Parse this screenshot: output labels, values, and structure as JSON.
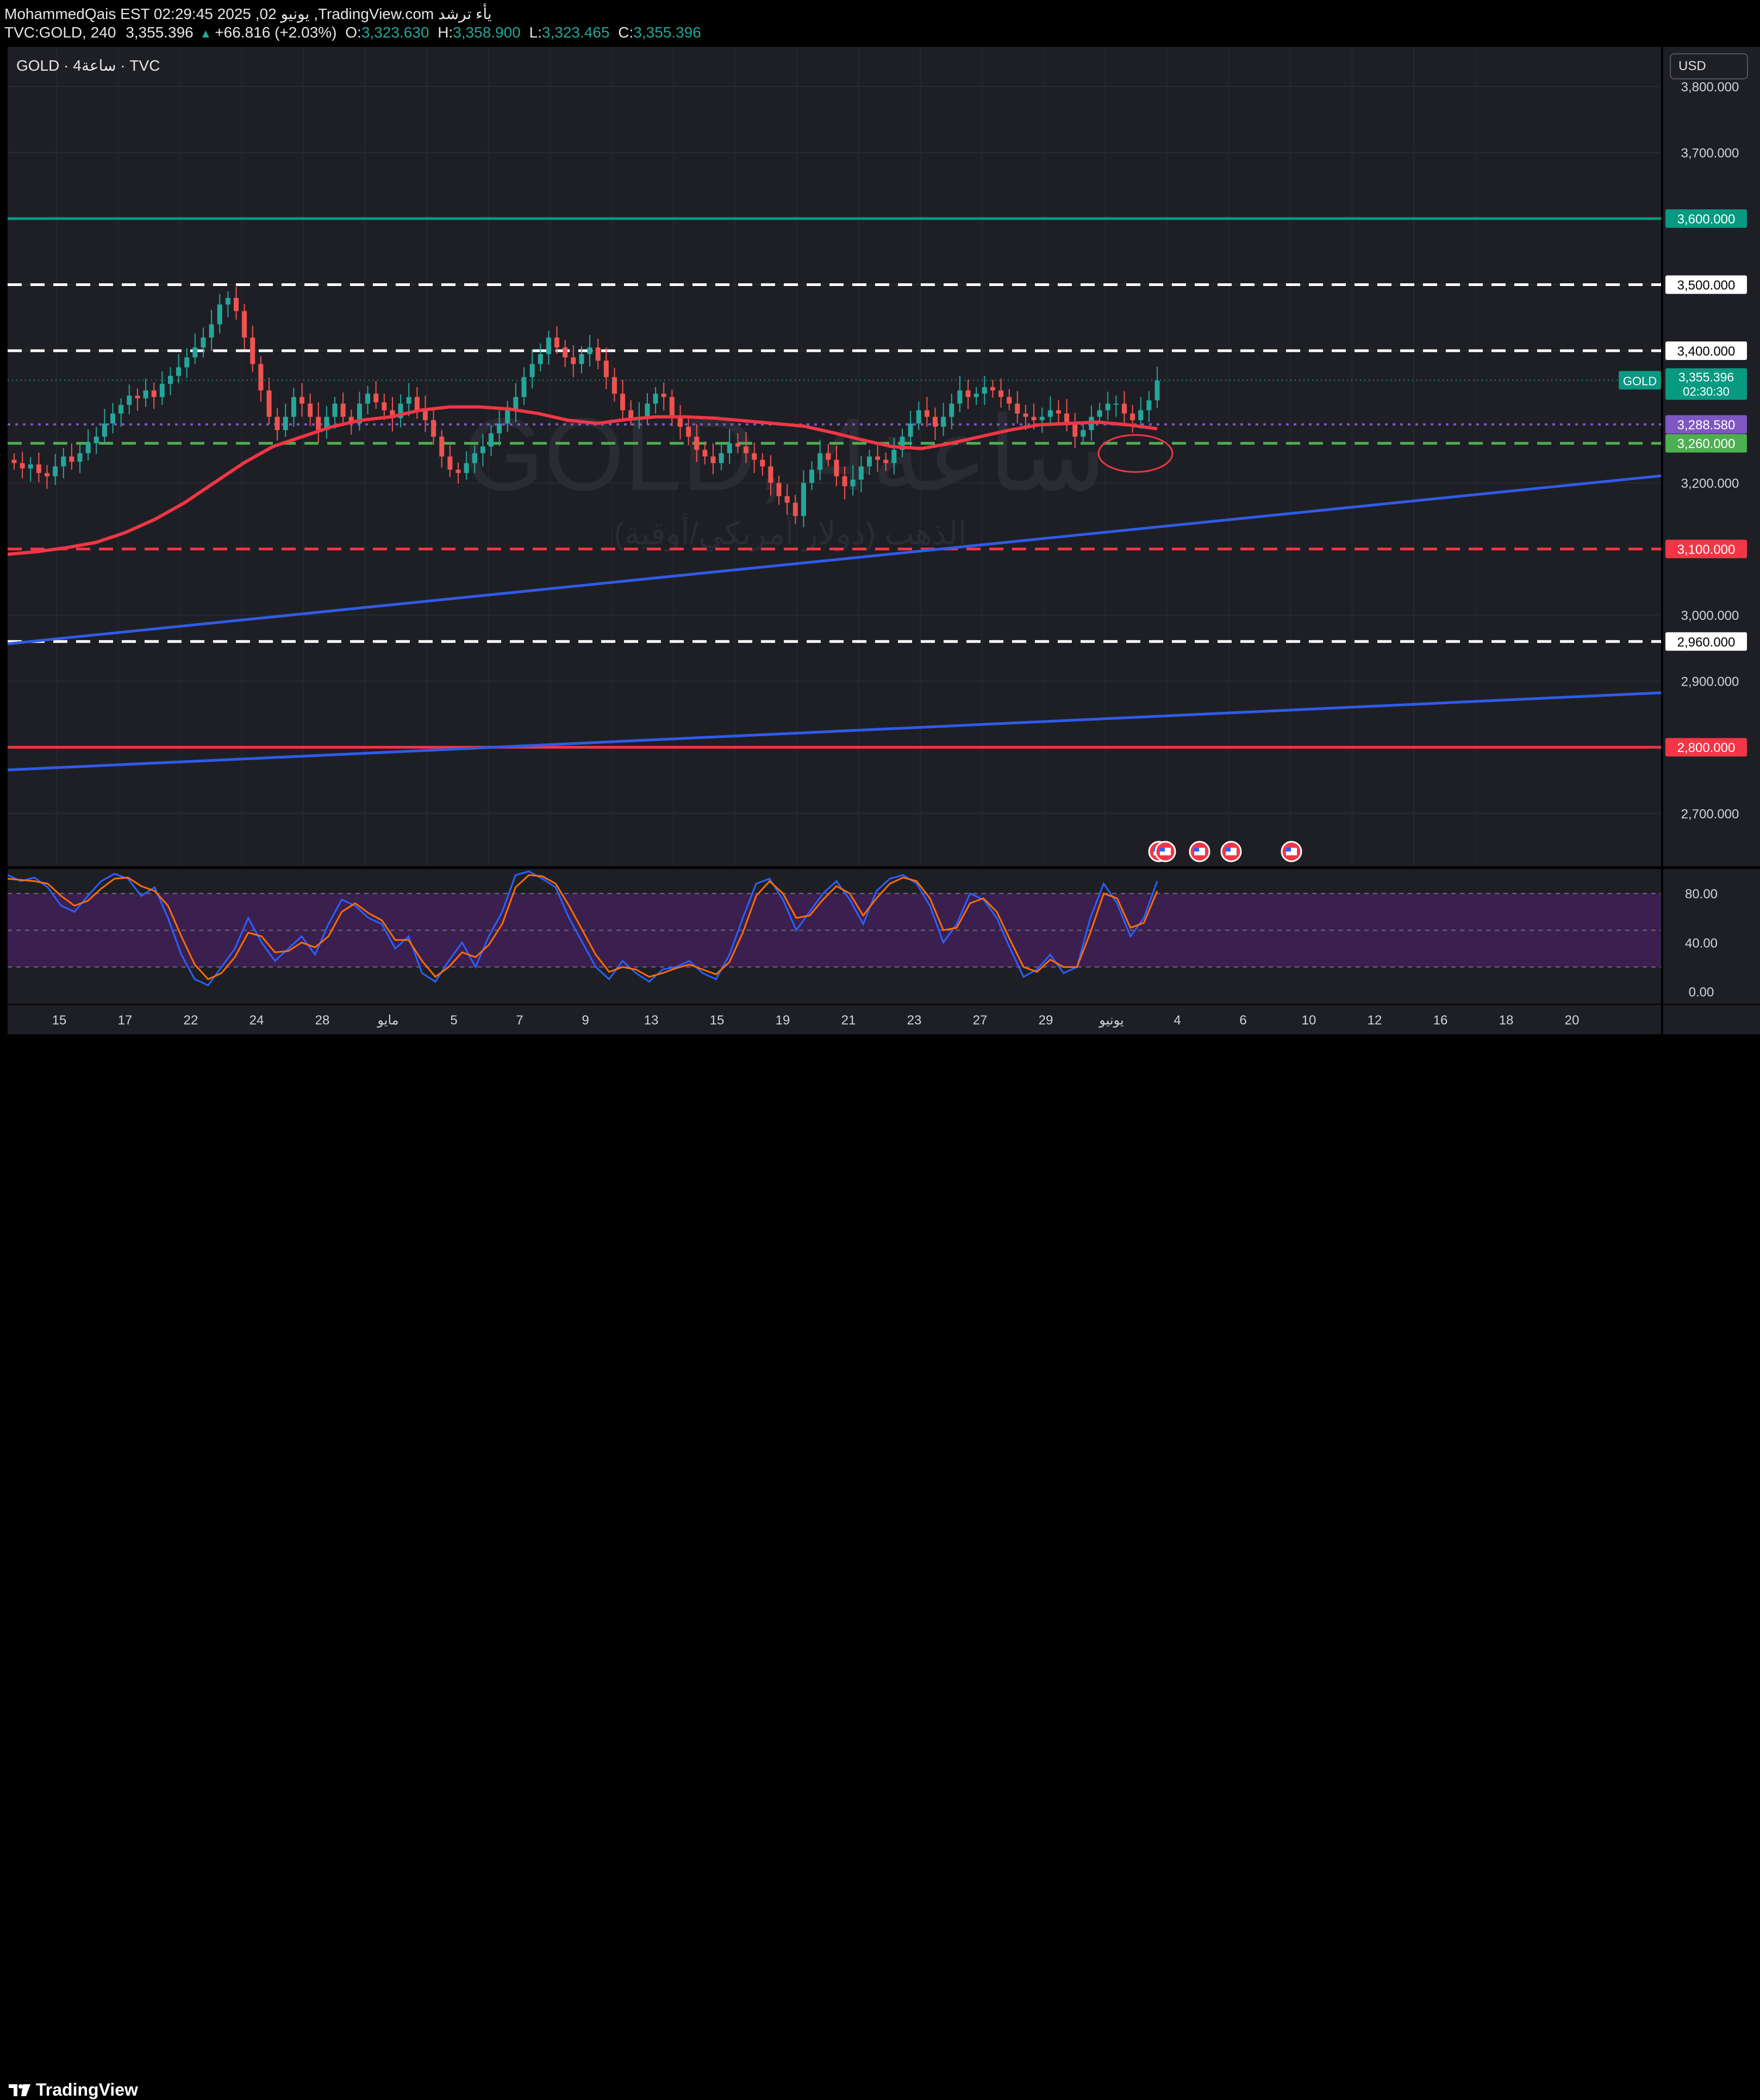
{
  "header": {
    "line1": "MohammedQais EST 02:29:45 2025 ,02 يونيو ,TradingView.com يأء ترشد",
    "symbol": "TVC:GOLD, 240",
    "last": "3,355.396",
    "change": "+66.816 (+2.03%)",
    "o_label": "O:",
    "o_value": "3,323.630",
    "h_label": "H:",
    "h_value": "3,358.900",
    "l_label": "L:",
    "l_value": "3,323.465",
    "c_label": "C:",
    "c_value": "3,355.396"
  },
  "legend": {
    "text": "GOLD · 4ساعة · TVC"
  },
  "currency": "USD",
  "watermark": {
    "title": "GOLD, 4ساعة",
    "subtitle": "الذهب (دولار أمريكي/أوقية)"
  },
  "colors": {
    "background": "#1e1f25",
    "up": "#26a69a",
    "down": "#ef5350",
    "ma": "#f23645",
    "trend": "#2f5bea",
    "resistance_green": "#089981",
    "support_red": "#f23645",
    "purple": "#7e57c2",
    "stoch_k": "#2962ff",
    "stoch_d": "#ff6d00"
  },
  "price_axis": {
    "range": [
      2620,
      3860
    ],
    "ticks": [
      "3,800.000",
      "3,700.000",
      "3,500.000",
      "3,400.000",
      "3,200.000",
      "3,000.000",
      "2,900.000",
      "2,700.000"
    ],
    "tick_values": [
      3800,
      3700,
      3500,
      3400,
      3200,
      3000,
      2900,
      2700
    ]
  },
  "levels": [
    {
      "value": 3600,
      "label": "3,600.000",
      "style": "solid",
      "color": "#089981"
    },
    {
      "value": 3500,
      "label": "3,500.000",
      "style": "dashed",
      "color": "#ffffff"
    },
    {
      "value": 3400,
      "label": "3,400.000",
      "style": "dashed",
      "color": "#ffffff"
    },
    {
      "value": 3288.58,
      "label": "3,288.580",
      "style": "dotted",
      "color": "#7e57c2"
    },
    {
      "value": 3260,
      "label": "3,260.000",
      "style": "dashed",
      "color": "#4caf50"
    },
    {
      "value": 3100,
      "label": "3,100.000",
      "style": "dashed",
      "color": "#f23645"
    },
    {
      "value": 2960,
      "label": "2,960.000",
      "style": "dashed",
      "color": "#ffffff"
    },
    {
      "value": 2800,
      "label": "2,800.000",
      "style": "solid",
      "color": "#f23645"
    }
  ],
  "current_price": {
    "symbol": "GOLD",
    "value": "3,355.396",
    "countdown": "02:30:30"
  },
  "time_axis": {
    "labels": [
      "15",
      "17",
      "22",
      "24",
      "28",
      "مايو",
      "5",
      "7",
      "9",
      "13",
      "15",
      "19",
      "21",
      "23",
      "27",
      "29",
      "يونيو",
      "4",
      "6",
      "10",
      "12",
      "16",
      "18",
      "20"
    ]
  },
  "oscillator": {
    "ticks": [
      "80.00",
      "40.00",
      "0.00"
    ],
    "tick_values": [
      80,
      40,
      0
    ]
  },
  "chart_data": [
    {
      "type": "candlestick",
      "title": "GOLD, 4h, TVC",
      "ylabel": "USD",
      "ylim": [
        2620,
        3860
      ],
      "approx_close": [
        3230,
        3222,
        3228,
        3215,
        3210,
        3225,
        3240,
        3232,
        3245,
        3260,
        3270,
        3290,
        3305,
        3318,
        3332,
        3328,
        3340,
        3330,
        3350,
        3362,
        3375,
        3390,
        3405,
        3420,
        3440,
        3470,
        3480,
        3460,
        3420,
        3380,
        3340,
        3300,
        3280,
        3300,
        3330,
        3320,
        3300,
        3280,
        3300,
        3320,
        3300,
        3290,
        3320,
        3335,
        3322,
        3310,
        3298,
        3320,
        3330,
        3310,
        3295,
        3270,
        3240,
        3220,
        3215,
        3230,
        3245,
        3255,
        3275,
        3290,
        3310,
        3330,
        3360,
        3380,
        3395,
        3420,
        3405,
        3390,
        3380,
        3395,
        3405,
        3385,
        3360,
        3335,
        3310,
        3298,
        3300,
        3320,
        3335,
        3330,
        3300,
        3285,
        3270,
        3250,
        3240,
        3230,
        3245,
        3260,
        3255,
        3245,
        3235,
        3225,
        3200,
        3180,
        3170,
        3150,
        3200,
        3220,
        3245,
        3235,
        3210,
        3195,
        3205,
        3225,
        3240,
        3235,
        3230,
        3250,
        3270,
        3290,
        3310,
        3300,
        3285,
        3300,
        3320,
        3340,
        3330,
        3335,
        3345,
        3340,
        3330,
        3320,
        3305,
        3300,
        3295,
        3300,
        3310,
        3305,
        3290,
        3270,
        3280,
        3300,
        3310,
        3320,
        3320,
        3305,
        3295,
        3310,
        3325,
        3355
      ]
    },
    {
      "type": "line",
      "name": "Moving average",
      "color": "#f23645",
      "approx_values": [
        3092,
        3096,
        3102,
        3110,
        3125,
        3145,
        3170,
        3200,
        3230,
        3255,
        3270,
        3285,
        3295,
        3300,
        3310,
        3315,
        3315,
        3312,
        3305,
        3295,
        3290,
        3296,
        3300,
        3300,
        3298,
        3294,
        3290,
        3286,
        3276,
        3265,
        3255,
        3252,
        3260,
        3270,
        3280,
        3288,
        3290,
        3292,
        3288,
        3282
      ]
    },
    {
      "type": "line",
      "name": "Stochastic RSI",
      "ylim": [
        -10,
        100
      ],
      "series": [
        {
          "name": "%K",
          "color": "#2962ff",
          "values": [
            95,
            90,
            93,
            85,
            70,
            65,
            78,
            90,
            96,
            92,
            78,
            85,
            60,
            30,
            10,
            5,
            20,
            35,
            60,
            40,
            25,
            35,
            45,
            30,
            55,
            75,
            70,
            60,
            55,
            35,
            45,
            15,
            8,
            25,
            40,
            20,
            45,
            65,
            95,
            98,
            92,
            85,
            60,
            40,
            20,
            10,
            25,
            15,
            8,
            18,
            20,
            25,
            15,
            10,
            30,
            60,
            88,
            92,
            75,
            50,
            65,
            80,
            90,
            75,
            55,
            82,
            92,
            95,
            88,
            70,
            40,
            55,
            80,
            75,
            60,
            35,
            12,
            18,
            30,
            15,
            20,
            60,
            88,
            72,
            45,
            60,
            90
          ]
        },
        {
          "name": "%D",
          "color": "#ff6d00",
          "values": [
            92,
            91,
            90,
            88,
            78,
            70,
            74,
            84,
            92,
            93,
            86,
            82,
            70,
            45,
            22,
            10,
            15,
            28,
            48,
            45,
            32,
            33,
            40,
            36,
            45,
            65,
            72,
            64,
            58,
            42,
            42,
            25,
            12,
            20,
            32,
            28,
            38,
            55,
            85,
            95,
            94,
            88,
            70,
            50,
            30,
            16,
            20,
            18,
            12,
            15,
            19,
            22,
            18,
            14,
            24,
            48,
            78,
            90,
            80,
            60,
            62,
            75,
            86,
            80,
            62,
            76,
            88,
            93,
            90,
            76,
            50,
            52,
            72,
            76,
            65,
            42,
            20,
            16,
            26,
            20,
            20,
            48,
            80,
            76,
            52,
            56,
            82
          ]
        }
      ],
      "bands": [
        80,
        20
      ]
    }
  ]
}
